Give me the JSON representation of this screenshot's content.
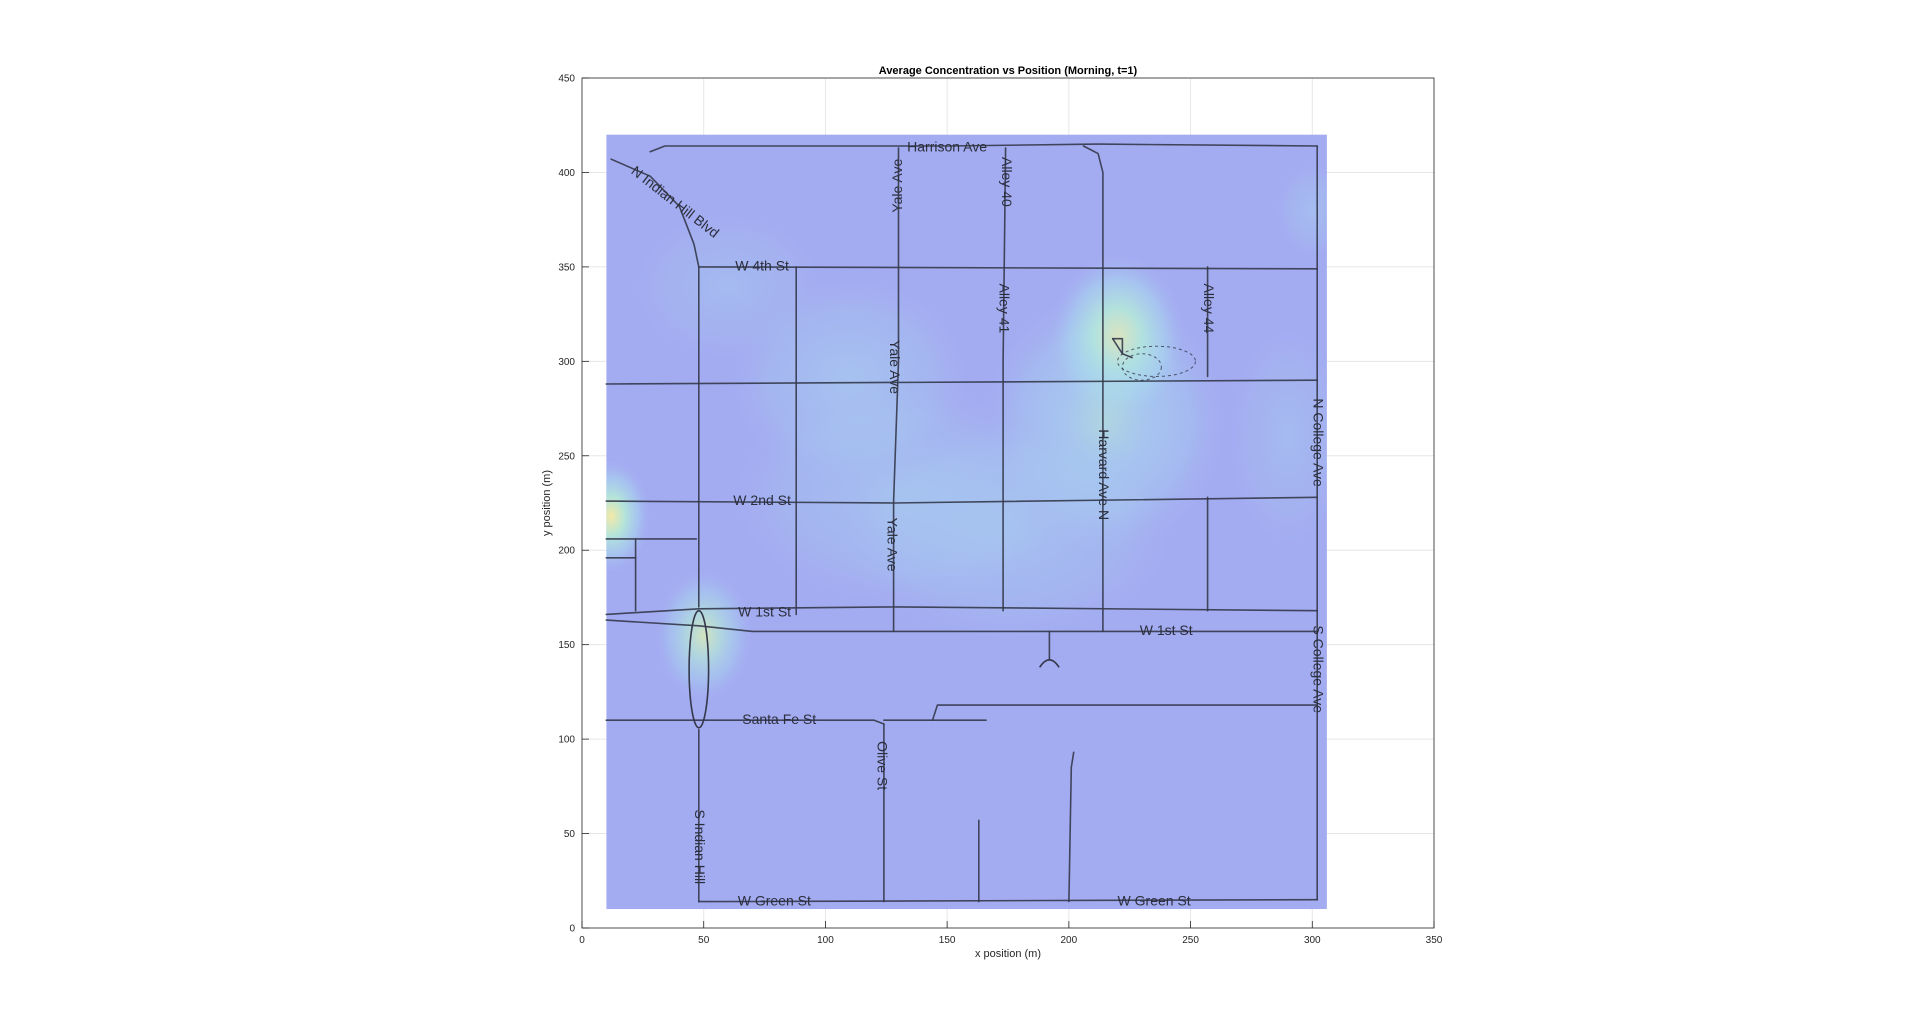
{
  "chart_data": {
    "type": "heatmap",
    "title": "Average Concentration vs Position (Morning, t=1)",
    "xlabel": "x position (m)",
    "ylabel": "y position (m)",
    "xlim": [
      0,
      350
    ],
    "ylim": [
      0,
      450
    ],
    "xticks": [
      0,
      50,
      100,
      150,
      200,
      250,
      300,
      350
    ],
    "yticks": [
      0,
      50,
      100,
      150,
      200,
      250,
      300,
      350,
      400,
      450
    ],
    "grid": true,
    "legend": "none",
    "map_extent": {
      "x": [
        10,
        306
      ],
      "y": [
        10,
        420
      ]
    },
    "colormap": [
      "#9da0ef",
      "#a8b6f2",
      "#a9d8ee",
      "#b5e7d8",
      "#dcedb8",
      "#f4e9a8"
    ],
    "hotspots": [
      {
        "x": 220,
        "y": 312,
        "rx": 28,
        "ry": 45,
        "level": 1.0
      },
      {
        "x": 215,
        "y": 268,
        "rx": 50,
        "ry": 70,
        "level": 0.55
      },
      {
        "x": 12,
        "y": 218,
        "rx": 16,
        "ry": 30,
        "level": 0.95
      },
      {
        "x": 50,
        "y": 155,
        "rx": 20,
        "ry": 35,
        "level": 0.7
      },
      {
        "x": 110,
        "y": 290,
        "rx": 50,
        "ry": 55,
        "level": 0.35
      },
      {
        "x": 130,
        "y": 230,
        "rx": 70,
        "ry": 60,
        "level": 0.3
      },
      {
        "x": 175,
        "y": 210,
        "rx": 70,
        "ry": 60,
        "level": 0.3
      },
      {
        "x": 60,
        "y": 340,
        "rx": 40,
        "ry": 40,
        "level": 0.2
      },
      {
        "x": 290,
        "y": 260,
        "rx": 25,
        "ry": 60,
        "level": 0.2
      },
      {
        "x": 300,
        "y": 380,
        "rx": 15,
        "ry": 25,
        "level": 0.25
      }
    ],
    "streets": [
      {
        "name": "Harrison Ave",
        "label": {
          "x": 150,
          "y": 413,
          "rot": 0
        },
        "lines": [
          [
            [
              28,
              411
            ],
            [
              34,
              414
            ],
            [
              150,
              414
            ],
            [
              212,
              415
            ],
            [
              302,
              414
            ]
          ]
        ]
      },
      {
        "name": "W 4th St",
        "label": {
          "x": 74,
          "y": 350,
          "rot": 0
        },
        "lines": [
          [
            [
              48,
              350
            ],
            [
              302,
              349
            ]
          ]
        ]
      },
      {
        "name": "W 2nd St",
        "label": {
          "x": 74,
          "y": 226,
          "rot": 0
        },
        "lines": [
          [
            [
              10,
              226
            ],
            [
              128,
              225
            ],
            [
              302,
              228
            ]
          ]
        ]
      },
      {
        "name": "W 1st St",
        "label": {
          "x": 75,
          "y": 167,
          "rot": 0
        },
        "lines": [
          [
            [
              10,
              166
            ],
            [
              48,
              169
            ],
            [
              130,
              170
            ],
            [
              302,
              168
            ]
          ],
          [
            [
              10,
              163
            ],
            [
              48,
              160
            ],
            [
              70,
              157
            ],
            [
              302,
              157
            ]
          ]
        ]
      },
      {
        "name": "W 1st St",
        "label": {
          "x": 240,
          "y": 157,
          "rot": 0
        }
      },
      {
        "name": "Santa Fe St",
        "label": {
          "x": 81,
          "y": 110,
          "rot": 0
        },
        "lines": [
          [
            [
              10,
              110
            ],
            [
              120,
              110
            ],
            [
              124,
              108
            ]
          ],
          [
            [
              124,
              110
            ],
            [
              166,
              110
            ]
          ],
          [
            [
              144,
              110
            ],
            [
              146,
              118
            ],
            [
              302,
              118
            ]
          ]
        ]
      },
      {
        "name": "W Green St",
        "label": {
          "x": 79,
          "y": 14,
          "rot": 0
        },
        "lines": [
          [
            [
              48,
              14
            ],
            [
              302,
              15
            ]
          ]
        ]
      },
      {
        "name": "W Green St",
        "label": {
          "x": 235,
          "y": 14,
          "rot": 0
        }
      },
      {
        "name": "N Indian Hill Blvd",
        "label": {
          "x": 38,
          "y": 384,
          "rot": 38
        },
        "lines": [
          [
            [
              12,
              407
            ],
            [
              28,
              398
            ],
            [
              40,
              382
            ],
            [
              46,
              362
            ],
            [
              48,
              350
            ],
            [
              48,
              170
            ]
          ]
        ]
      },
      {
        "name": "S Indian Hill",
        "label": {
          "x": 48,
          "y": 43,
          "rot": 90
        },
        "lines": [
          [
            [
              48,
              105
            ],
            [
              48,
              14
            ]
          ]
        ]
      },
      {
        "name": "Yale Ave",
        "label": {
          "x": 130,
          "y": 393,
          "rot": 270
        },
        "lines": [
          [
            [
              130,
              413
            ],
            [
              130,
              300
            ],
            [
              128,
              226
            ],
            [
              128,
              157
            ]
          ]
        ]
      },
      {
        "name": "Yale Ave",
        "label": {
          "x": 128,
          "y": 297,
          "rot": 90
        }
      },
      {
        "name": "Yale Ave",
        "label": {
          "x": 127,
          "y": 203,
          "rot": 90
        }
      },
      {
        "name": "Alley 40",
        "label": {
          "x": 174,
          "y": 395,
          "rot": 90
        },
        "lines": [
          [
            [
              174,
              413
            ],
            [
              173,
              300
            ],
            [
              173,
              168
            ]
          ]
        ]
      },
      {
        "name": "Alley 41",
        "label": {
          "x": 173,
          "y": 328,
          "rot": 90
        }
      },
      {
        "name": "Harvard Ave N",
        "label": {
          "x": 214,
          "y": 240,
          "rot": 90
        },
        "lines": [
          [
            [
              206,
              414
            ],
            [
              212,
              410
            ],
            [
              214,
              400
            ],
            [
              214,
              300
            ],
            [
              214,
              157
            ]
          ]
        ]
      },
      {
        "name": "Alley 44",
        "label": {
          "x": 257,
          "y": 328,
          "rot": 90
        },
        "lines": [
          [
            [
              257,
              350
            ],
            [
              257,
              292
            ]
          ],
          [
            [
              257,
              228
            ],
            [
              257,
              168
            ]
          ]
        ]
      },
      {
        "name": "N College Ave",
        "label": {
          "x": 302,
          "y": 257,
          "rot": 90
        },
        "lines": [
          [
            [
              302,
              414
            ],
            [
              302,
              15
            ]
          ]
        ]
      },
      {
        "name": "S College Ave",
        "label": {
          "x": 302,
          "y": 137,
          "rot": 90
        }
      },
      {
        "name": "Olive St",
        "label": {
          "x": 123,
          "y": 86,
          "rot": 90
        },
        "lines": [
          [
            [
              124,
              108
            ],
            [
              124,
              14
            ]
          ]
        ]
      },
      {
        "name": "",
        "lines": [
          [
            [
              10,
              288
            ],
            [
              302,
              290
            ]
          ],
          [
            [
              88,
              350
            ],
            [
              88,
              166
            ]
          ],
          [
            [
              10,
              206
            ],
            [
              47,
              206
            ]
          ],
          [
            [
              22,
              206
            ],
            [
              22,
              168
            ]
          ],
          [
            [
              10,
              196
            ],
            [
              22,
              196
            ]
          ],
          [
            [
              192,
              157
            ],
            [
              192,
              142
            ]
          ],
          [
            [
              163,
              57
            ],
            [
              163,
              14
            ]
          ],
          [
            [
              202,
              93
            ],
            [
              201,
              85
            ],
            [
              200,
              14
            ]
          ],
          [
            [
              218,
              312
            ],
            [
              222,
              304
            ],
            [
              226,
              302
            ]
          ],
          [
            [
              218,
              312
            ],
            [
              222,
              312
            ],
            [
              222,
              304
            ]
          ]
        ]
      }
    ]
  }
}
